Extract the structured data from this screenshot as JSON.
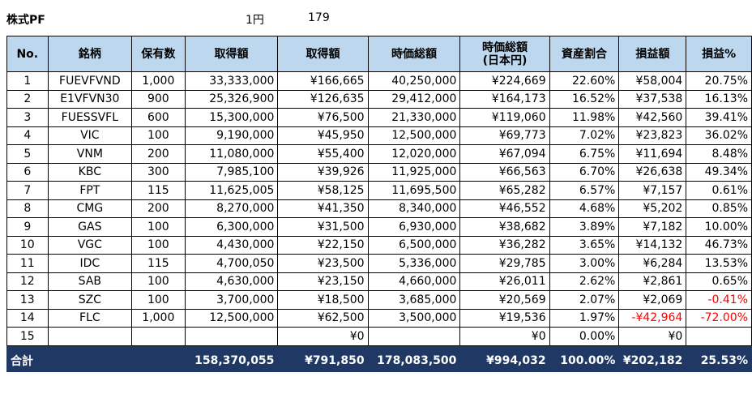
{
  "top": {
    "title": "株式PF",
    "fx_unit": "1円",
    "fx_rate": "179"
  },
  "headers": [
    "No.",
    "銘柄",
    "保有数",
    "取得額",
    "取得額",
    "時価総額",
    "時価総額\n(日本円)",
    "資産割合",
    "損益額",
    "損益%"
  ],
  "rows": [
    {
      "no": "1",
      "ticker": "FUEVFVND",
      "qty": "1,000",
      "cost_vnd": "33,333,000",
      "cost_jpy": "¥166,665",
      "mv_vnd": "40,250,000",
      "mv_jpy": "¥224,669",
      "share": "22.60%",
      "pl": "¥58,004",
      "plp": "20.75%"
    },
    {
      "no": "2",
      "ticker": "E1VFVN30",
      "qty": "900",
      "cost_vnd": "25,326,900",
      "cost_jpy": "¥126,635",
      "mv_vnd": "29,412,000",
      "mv_jpy": "¥164,173",
      "share": "16.52%",
      "pl": "¥37,538",
      "plp": "16.13%"
    },
    {
      "no": "3",
      "ticker": "FUESSVFL",
      "qty": "600",
      "cost_vnd": "15,300,000",
      "cost_jpy": "¥76,500",
      "mv_vnd": "21,330,000",
      "mv_jpy": "¥119,060",
      "share": "11.98%",
      "pl": "¥42,560",
      "plp": "39.41%"
    },
    {
      "no": "4",
      "ticker": "VIC",
      "qty": "100",
      "cost_vnd": "9,190,000",
      "cost_jpy": "¥45,950",
      "mv_vnd": "12,500,000",
      "mv_jpy": "¥69,773",
      "share": "7.02%",
      "pl": "¥23,823",
      "plp": "36.02%"
    },
    {
      "no": "5",
      "ticker": "VNM",
      "qty": "200",
      "cost_vnd": "11,080,000",
      "cost_jpy": "¥55,400",
      "mv_vnd": "12,020,000",
      "mv_jpy": "¥67,094",
      "share": "6.75%",
      "pl": "¥11,694",
      "plp": "8.48%"
    },
    {
      "no": "6",
      "ticker": "KBC",
      "qty": "300",
      "cost_vnd": "7,985,100",
      "cost_jpy": "¥39,926",
      "mv_vnd": "11,925,000",
      "mv_jpy": "¥66,563",
      "share": "6.70%",
      "pl": "¥26,638",
      "plp": "49.34%"
    },
    {
      "no": "7",
      "ticker": "FPT",
      "qty": "115",
      "cost_vnd": "11,625,005",
      "cost_jpy": "¥58,125",
      "mv_vnd": "11,695,500",
      "mv_jpy": "¥65,282",
      "share": "6.57%",
      "pl": "¥7,157",
      "plp": "0.61%"
    },
    {
      "no": "8",
      "ticker": "CMG",
      "qty": "200",
      "cost_vnd": "8,270,000",
      "cost_jpy": "¥41,350",
      "mv_vnd": "8,340,000",
      "mv_jpy": "¥46,552",
      "share": "4.68%",
      "pl": "¥5,202",
      "plp": "0.85%"
    },
    {
      "no": "9",
      "ticker": "GAS",
      "qty": "100",
      "cost_vnd": "6,300,000",
      "cost_jpy": "¥31,500",
      "mv_vnd": "6,930,000",
      "mv_jpy": "¥38,682",
      "share": "3.89%",
      "pl": "¥7,182",
      "plp": "10.00%"
    },
    {
      "no": "10",
      "ticker": "VGC",
      "qty": "100",
      "cost_vnd": "4,430,000",
      "cost_jpy": "¥22,150",
      "mv_vnd": "6,500,000",
      "mv_jpy": "¥36,282",
      "share": "3.65%",
      "pl": "¥14,132",
      "plp": "46.73%"
    },
    {
      "no": "11",
      "ticker": "IDC",
      "qty": "115",
      "cost_vnd": "4,700,050",
      "cost_jpy": "¥23,500",
      "mv_vnd": "5,336,000",
      "mv_jpy": "¥29,785",
      "share": "3.00%",
      "pl": "¥6,284",
      "plp": "13.53%"
    },
    {
      "no": "12",
      "ticker": "SAB",
      "qty": "100",
      "cost_vnd": "4,630,000",
      "cost_jpy": "¥23,150",
      "mv_vnd": "4,660,000",
      "mv_jpy": "¥26,011",
      "share": "2.62%",
      "pl": "¥2,861",
      "plp": "0.65%"
    },
    {
      "no": "13",
      "ticker": "SZC",
      "qty": "100",
      "cost_vnd": "3,700,000",
      "cost_jpy": "¥18,500",
      "mv_vnd": "3,685,000",
      "mv_jpy": "¥20,569",
      "share": "2.07%",
      "pl": "¥2,069",
      "plp": "-0.41%",
      "neg_plp": true
    },
    {
      "no": "14",
      "ticker": "FLC",
      "qty": "1,000",
      "cost_vnd": "12,500,000",
      "cost_jpy": "¥62,500",
      "mv_vnd": "3,500,000",
      "mv_jpy": "¥19,536",
      "share": "1.97%",
      "pl": "-¥42,964",
      "plp": "-72.00%",
      "neg_pl": true,
      "neg_plp": true
    },
    {
      "no": "15",
      "ticker": "",
      "qty": "",
      "cost_vnd": "",
      "cost_jpy": "¥0",
      "mv_vnd": "",
      "mv_jpy": "¥0",
      "share": "0.00%",
      "pl": "¥0",
      "plp": ""
    }
  ],
  "total": {
    "label": "合計",
    "cost_vnd": "158,370,055",
    "cost_jpy": "¥791,850",
    "mv_vnd": "178,083,500",
    "mv_jpy": "¥994,032",
    "share": "100.00%",
    "pl": "¥202,182",
    "plp": "25.53%"
  },
  "colors": {
    "header_bg": "#bdd7ee",
    "total_bg": "#1f3864",
    "negative": "#ff0000"
  }
}
